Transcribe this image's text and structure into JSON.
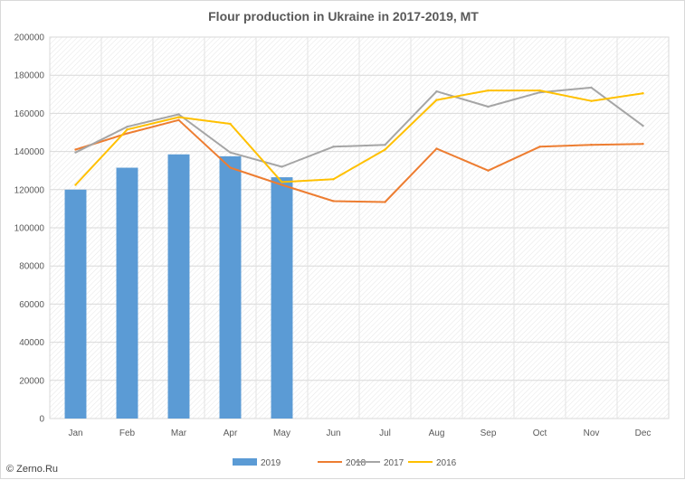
{
  "chart_data": {
    "type": "bar",
    "title": "Flour production in Ukraine in 2017-2019, MT",
    "categories": [
      "Jan",
      "Feb",
      "Mar",
      "Apr",
      "May",
      "Jun",
      "Jul",
      "Aug",
      "Sep",
      "Oct",
      "Nov",
      "Dec"
    ],
    "ylim": [
      0,
      200000
    ],
    "yticks": [
      "0",
      "20000",
      "40000",
      "60000",
      "80000",
      "100000",
      "120000",
      "140000",
      "160000",
      "180000",
      "200000"
    ],
    "grid": true,
    "legend": "bottom",
    "series": [
      {
        "name": "2019",
        "type": "bar",
        "color": "#5b9bd5",
        "values": [
          120000,
          131500,
          138500,
          137500,
          126500,
          null,
          null,
          null,
          null,
          null,
          null,
          null
        ]
      },
      {
        "name": "2018",
        "type": "line",
        "color": "#ed7d31",
        "values": [
          141000,
          149500,
          156500,
          131500,
          122500,
          114000,
          113500,
          141500,
          130000,
          142500,
          143500,
          144000
        ]
      },
      {
        "name": "2017",
        "type": "line",
        "color": "#a5a5a5",
        "values": [
          139500,
          153000,
          159500,
          139500,
          132000,
          142500,
          143500,
          171500,
          163500,
          171000,
          173500,
          153500
        ]
      },
      {
        "name": "2016",
        "type": "line",
        "color": "#ffc000",
        "values": [
          122500,
          151500,
          158000,
          154500,
          124000,
          125500,
          141000,
          167000,
          172000,
          172000,
          166500,
          170500
        ]
      }
    ]
  },
  "copyright": "© Zerno.Ru"
}
